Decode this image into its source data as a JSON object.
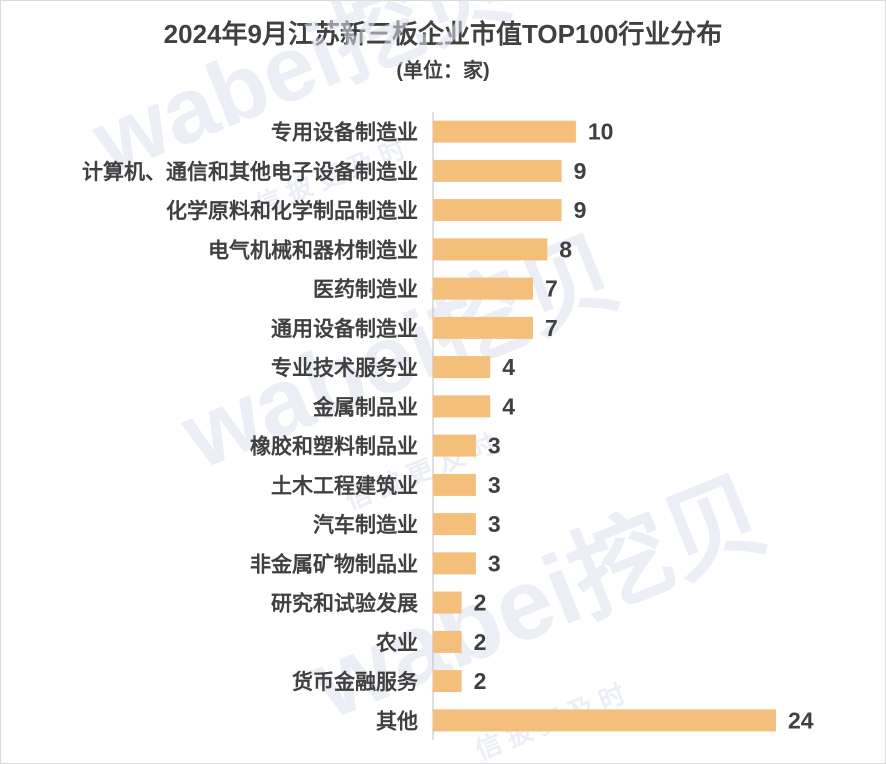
{
  "chart_data": {
    "type": "bar",
    "orientation": "horizontal",
    "title": "2024年9月江苏新三板企业市值TOP100行业分布",
    "subtitle": "(单位：家)",
    "categories": [
      "专用设备制造业",
      "计算机、通信和其他电子设备制造业",
      "化学原料和化学制品制造业",
      "电气机械和器材制造业",
      "医药制造业",
      "通用设备制造业",
      "专业技术服务业",
      "金属制品业",
      "橡胶和塑料制品业",
      "土木工程建筑业",
      "汽车制造业",
      "非金属矿物制品业",
      "研究和试验发展",
      "农业",
      "货币金融服务",
      "其他"
    ],
    "values": [
      10,
      9,
      9,
      8,
      7,
      7,
      4,
      4,
      3,
      3,
      3,
      3,
      2,
      2,
      2,
      24
    ],
    "xlim": [
      0,
      24
    ],
    "grid": false,
    "legend": "none",
    "bar_color": "#f3bf7b",
    "text_color": "#404040"
  },
  "watermark": {
    "text": "wabei挖贝",
    "tagline": "信 披 更 及 时"
  }
}
